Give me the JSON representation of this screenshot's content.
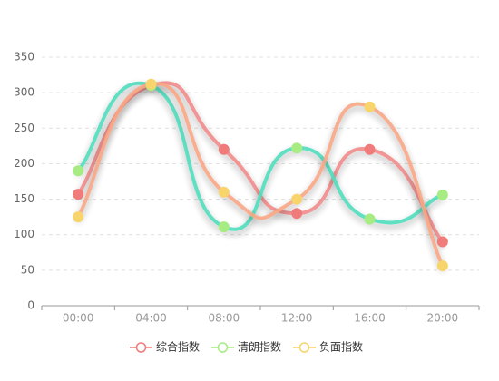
{
  "chart_data": {
    "type": "line",
    "smooth": true,
    "grid": true,
    "legend": "bottom",
    "categories": [
      "00:00",
      "04:00",
      "08:00",
      "12:00",
      "16:00",
      "20:00"
    ],
    "ylim": [
      0,
      350
    ],
    "yticks": [
      0,
      50,
      100,
      150,
      200,
      250,
      300,
      350
    ],
    "series": [
      {
        "name": "综合指数",
        "color": "#f07b7b",
        "line_color": "#f08a8a",
        "values": [
          157,
          310,
          220,
          130,
          220,
          90
        ]
      },
      {
        "name": "清朗指数",
        "color": "#a6ec82",
        "line_color": "#4fdcbc",
        "values": [
          190,
          310,
          111,
          222,
          122,
          156
        ]
      },
      {
        "name": "负面指数",
        "color": "#f7d46c",
        "line_color": "#f8a684",
        "values": [
          125,
          312,
          160,
          150,
          280,
          56
        ]
      }
    ]
  }
}
